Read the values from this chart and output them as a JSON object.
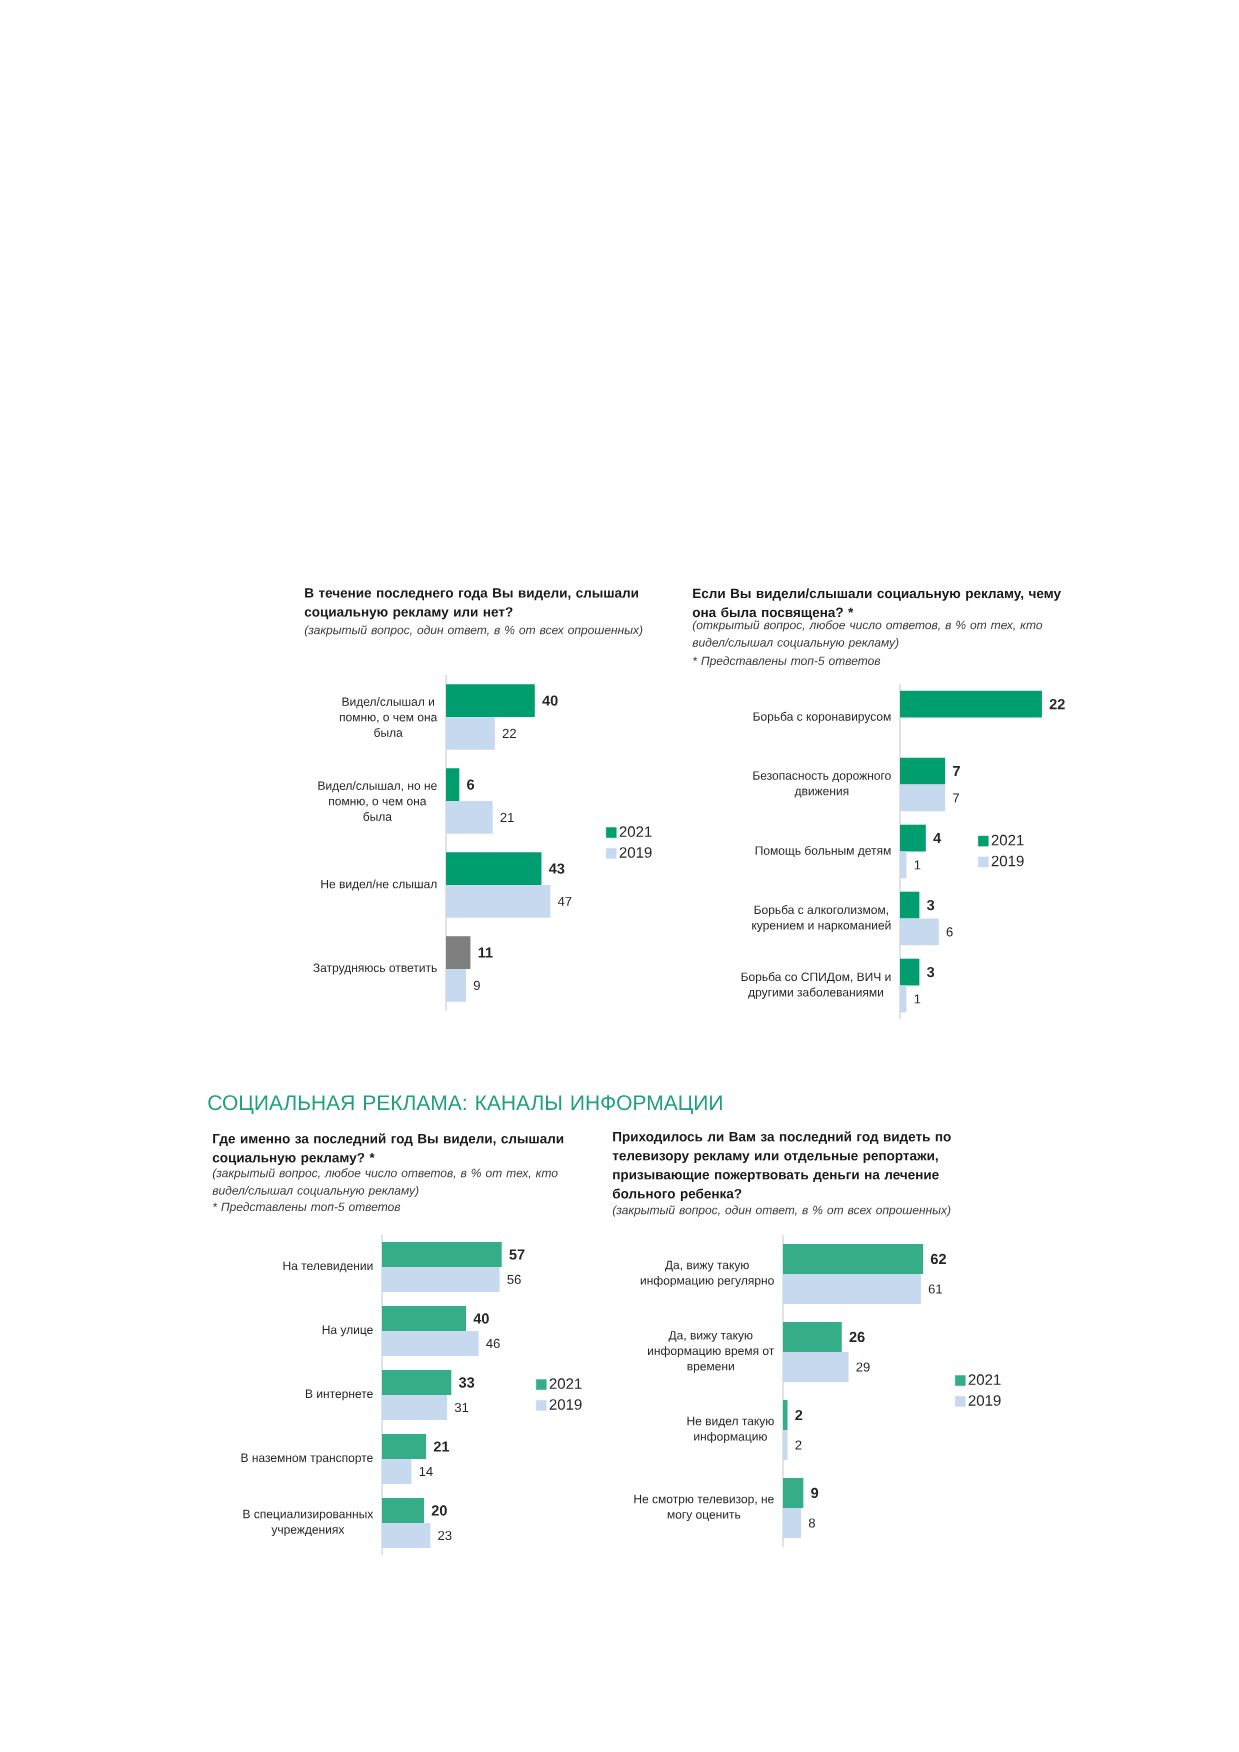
{
  "chart_data": [
    {
      "type": "bar",
      "orientation": "horizontal",
      "title": "В течение последнего года Вы видели, слышали социальную рекламу или нет?",
      "subtitle": "(закрытый вопрос, один ответ, в % от всех опрошенных)",
      "categories": [
        "Видел/слышал и помню, о чем она была",
        "Видел/слышал, но не помню, о чем она была",
        "Не видел/не слышал",
        "Затрудняюсь ответить"
      ],
      "series": [
        {
          "name": "2021",
          "color": "#009e6e",
          "colors": [
            "#009e6e",
            "#009e6e",
            "#009e6e",
            "#7f7f7f"
          ],
          "values": [
            40,
            6,
            43,
            11
          ]
        },
        {
          "name": "2019",
          "color": "#c6d9ee",
          "values": [
            22,
            21,
            47,
            9
          ]
        }
      ],
      "tick_labels": "y",
      "legend": "right",
      "data_labels": true
    },
    {
      "type": "bar",
      "orientation": "horizontal",
      "title": "Если Вы видели/слышали социальную рекламу, чему она была посвящена? *",
      "subtitle": "(открытый вопрос, любое число ответов, в % от тех, кто видел/слышал социальную рекламу)",
      "annotations": [
        "* Представлены топ-5 ответов"
      ],
      "categories": [
        "Борьба с коронавирусом",
        "Безопасность дорожного движения",
        "Помощь больным детям",
        "Борьба с алкоголизмом, курением и наркоманией",
        "Борьба со СПИДом, ВИЧ и другими заболеваниями"
      ],
      "series": [
        {
          "name": "2021",
          "color": "#009e6e",
          "values": [
            22,
            7,
            4,
            3,
            3
          ]
        },
        {
          "name": "2019",
          "color": "#c6d9ee",
          "values": [
            null,
            7,
            1,
            6,
            1
          ]
        }
      ],
      "tick_labels": "y",
      "legend": "right",
      "data_labels": true
    },
    {
      "type": "bar",
      "orientation": "horizontal",
      "title": "Где именно за последний год Вы видели, слышали социальную рекламу? *",
      "subtitle": "(закрытый вопрос, любое число ответов, в % от тех, кто видел/слышал социальную рекламу)",
      "annotations": [
        "СОЦИАЛЬНАЯ РЕКЛАМА: КАНАЛЫ ИНФОРМАЦИИ",
        "* Представлены топ-5 ответов"
      ],
      "categories": [
        "На телевидении",
        "На улице",
        "В интернете",
        "В наземном транспорте",
        "В специализированных учреждениях"
      ],
      "series": [
        {
          "name": "2021",
          "color": "#35ad88",
          "values": [
            57,
            40,
            33,
            21,
            20
          ]
        },
        {
          "name": "2019",
          "color": "#c6d9ee",
          "values": [
            56,
            46,
            31,
            14,
            23
          ]
        }
      ],
      "tick_labels": "y",
      "legend": "right",
      "data_labels": true
    },
    {
      "type": "bar",
      "orientation": "horizontal",
      "title": "Приходилось ли Вам за последний год видеть по телевизору рекламу или отдельные репортажи, призывающие пожертвовать деньги на лечение больного ребенка?",
      "subtitle": "(закрытый вопрос, один ответ, в % от всех опрошенных)",
      "categories": [
        "Да, вижу такую информацию регулярно",
        "Да, вижу такую информацию время от времени",
        "Не видел такую информацию",
        "Не смотрю телевизор, не могу оценить"
      ],
      "series": [
        {
          "name": "2021",
          "color": "#35ad88",
          "values": [
            62,
            26,
            2,
            9
          ]
        },
        {
          "name": "2019",
          "color": "#c6d9ee",
          "values": [
            61,
            29,
            2,
            8
          ]
        }
      ],
      "tick_labels": "y",
      "legend": "right",
      "data_labels": true
    }
  ]
}
